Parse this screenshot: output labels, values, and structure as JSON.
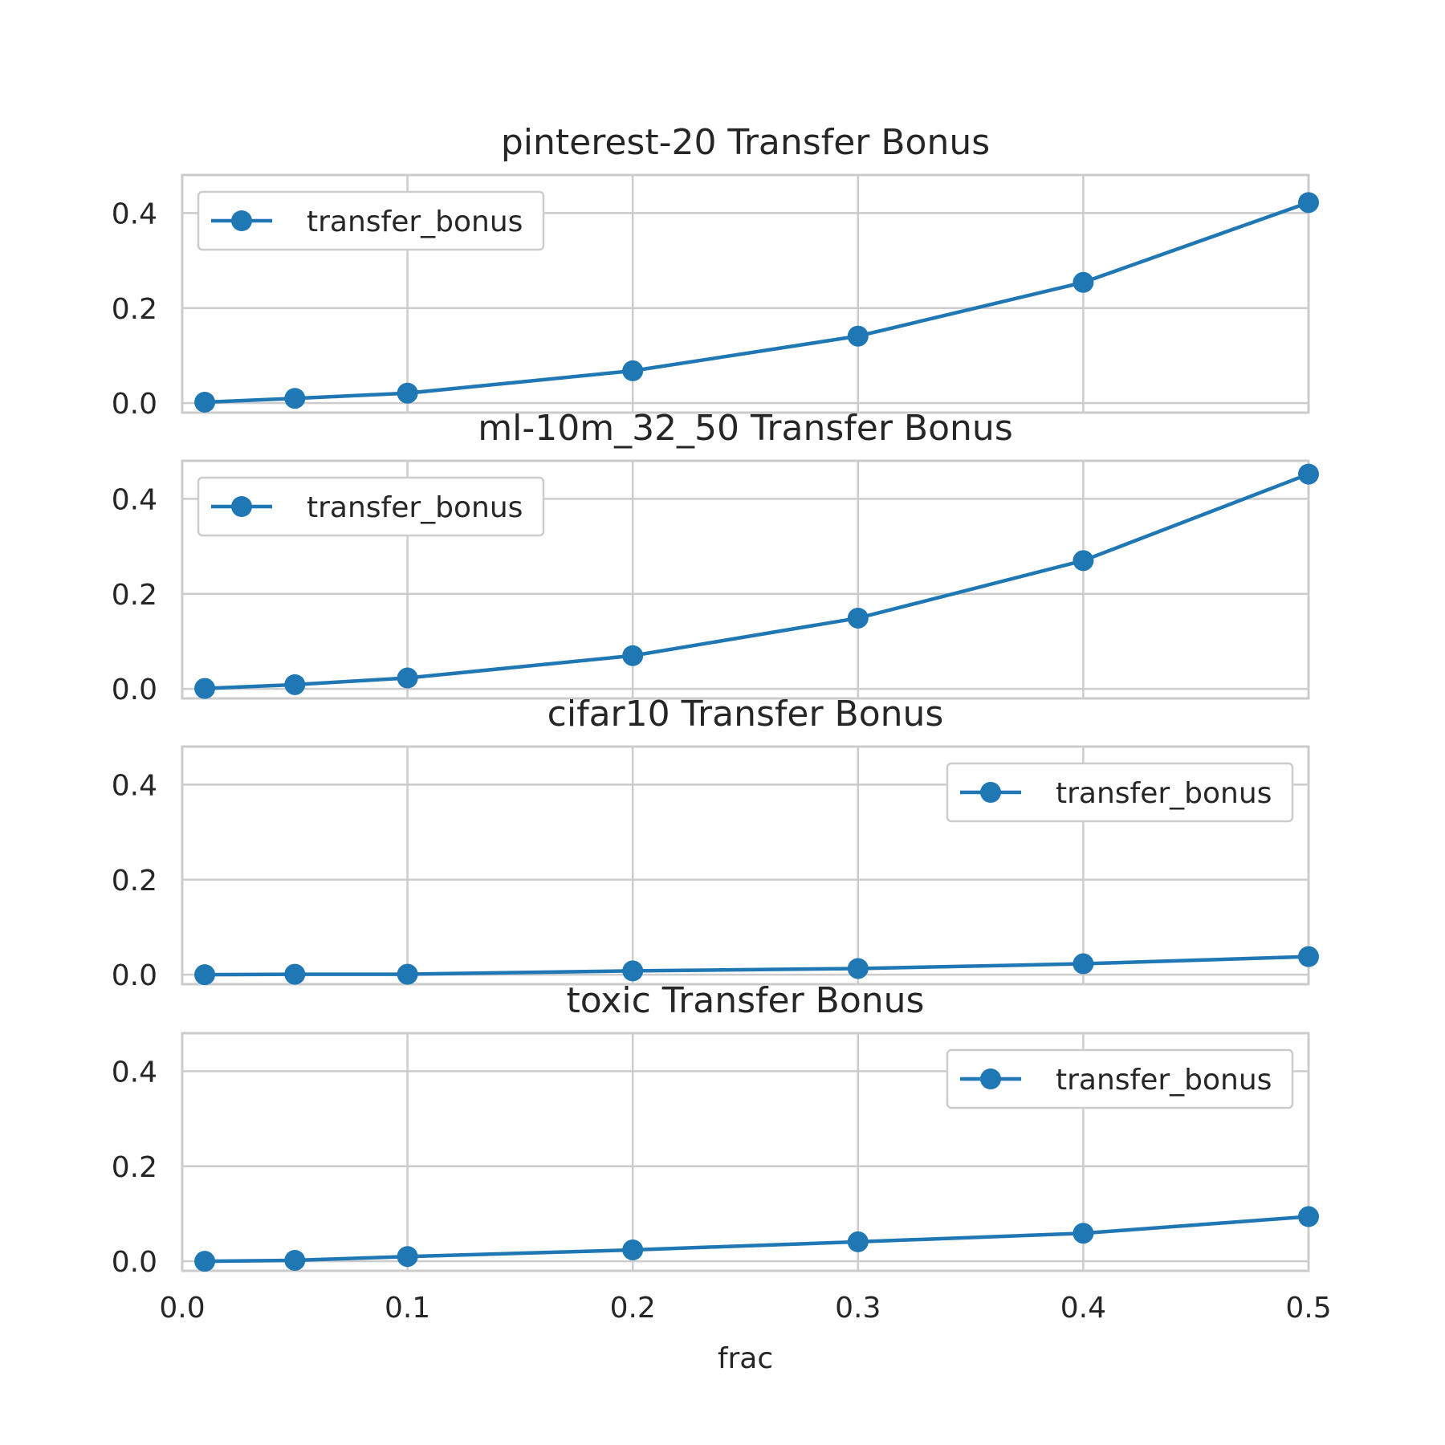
{
  "figure": {
    "xlabel": "frac",
    "x_ticks": [
      "0.0",
      "0.1",
      "0.2",
      "0.3",
      "0.4",
      "0.5"
    ],
    "y_ticks": [
      "0.0",
      "0.2",
      "0.4"
    ]
  },
  "chart_data": [
    {
      "type": "line",
      "title": "pinterest-20 Transfer Bonus",
      "xlabel": "",
      "ylabel": "",
      "xlim": [
        0.0,
        0.5
      ],
      "ylim": [
        -0.02,
        0.48
      ],
      "grid": true,
      "legend": "upper-left",
      "x": [
        0.01,
        0.05,
        0.1,
        0.2,
        0.3,
        0.4,
        0.5
      ],
      "series": [
        {
          "name": "transfer_bonus",
          "color": "#1f77b4",
          "values": [
            0.002,
            0.01,
            0.021,
            0.068,
            0.141,
            0.254,
            0.422
          ]
        }
      ]
    },
    {
      "type": "line",
      "title": "ml-10m_32_50 Transfer Bonus",
      "xlabel": "",
      "ylabel": "",
      "xlim": [
        0.0,
        0.5
      ],
      "ylim": [
        -0.02,
        0.48
      ],
      "grid": true,
      "legend": "upper-left",
      "x": [
        0.01,
        0.05,
        0.1,
        0.2,
        0.3,
        0.4,
        0.5
      ],
      "series": [
        {
          "name": "transfer_bonus",
          "color": "#1f77b4",
          "values": [
            0.001,
            0.009,
            0.023,
            0.07,
            0.149,
            0.27,
            0.452
          ]
        }
      ]
    },
    {
      "type": "line",
      "title": "cifar10 Transfer Bonus",
      "xlabel": "",
      "ylabel": "",
      "xlim": [
        0.0,
        0.5
      ],
      "ylim": [
        -0.02,
        0.48
      ],
      "grid": true,
      "legend": "upper-right",
      "x": [
        0.01,
        0.05,
        0.1,
        0.2,
        0.3,
        0.4,
        0.5
      ],
      "series": [
        {
          "name": "transfer_bonus",
          "color": "#1f77b4",
          "values": [
            0.0,
            0.001,
            0.001,
            0.008,
            0.013,
            0.023,
            0.038
          ]
        }
      ]
    },
    {
      "type": "line",
      "title": "toxic Transfer Bonus",
      "xlabel": "frac",
      "ylabel": "",
      "xlim": [
        0.0,
        0.5
      ],
      "ylim": [
        -0.02,
        0.48
      ],
      "grid": true,
      "legend": "upper-right",
      "x": [
        0.01,
        0.05,
        0.1,
        0.2,
        0.3,
        0.4,
        0.5
      ],
      "series": [
        {
          "name": "transfer_bonus",
          "color": "#1f77b4",
          "values": [
            0.0,
            0.002,
            0.01,
            0.024,
            0.041,
            0.059,
            0.094
          ]
        }
      ]
    }
  ]
}
